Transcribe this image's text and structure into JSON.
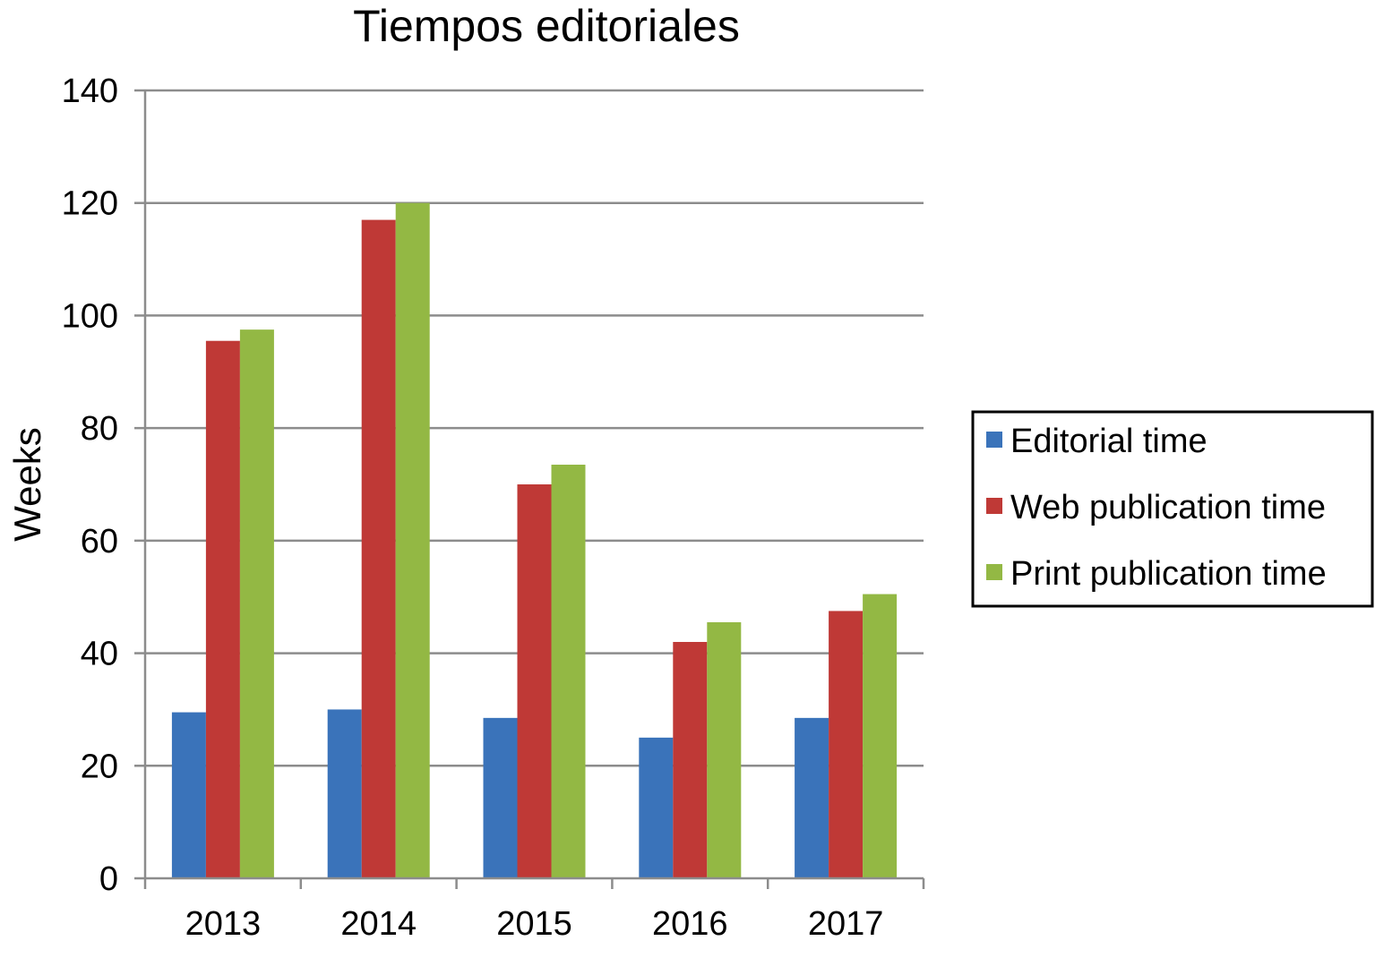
{
  "chart_data": {
    "type": "bar",
    "title": "Tiempos editoriales",
    "xlabel": "",
    "ylabel": "Weeks",
    "categories": [
      "2013",
      "2014",
      "2015",
      "2016",
      "2017"
    ],
    "series": [
      {
        "name": "Editorial time",
        "color": "#3a73ba",
        "values": [
          29.5,
          30,
          28.5,
          25,
          28.5
        ]
      },
      {
        "name": "Web publication time",
        "color": "#bf3936",
        "values": [
          95.5,
          117,
          70,
          42,
          47.5
        ]
      },
      {
        "name": "Print publication time",
        "color": "#93b844",
        "values": [
          97.5,
          120,
          73.5,
          45.5,
          50.5
        ]
      }
    ],
    "ylim": [
      0,
      140
    ],
    "yticks": [
      "0",
      "20",
      "40",
      "60",
      "80",
      "100",
      "120",
      "140"
    ],
    "grid": true,
    "legend_position": "right"
  }
}
